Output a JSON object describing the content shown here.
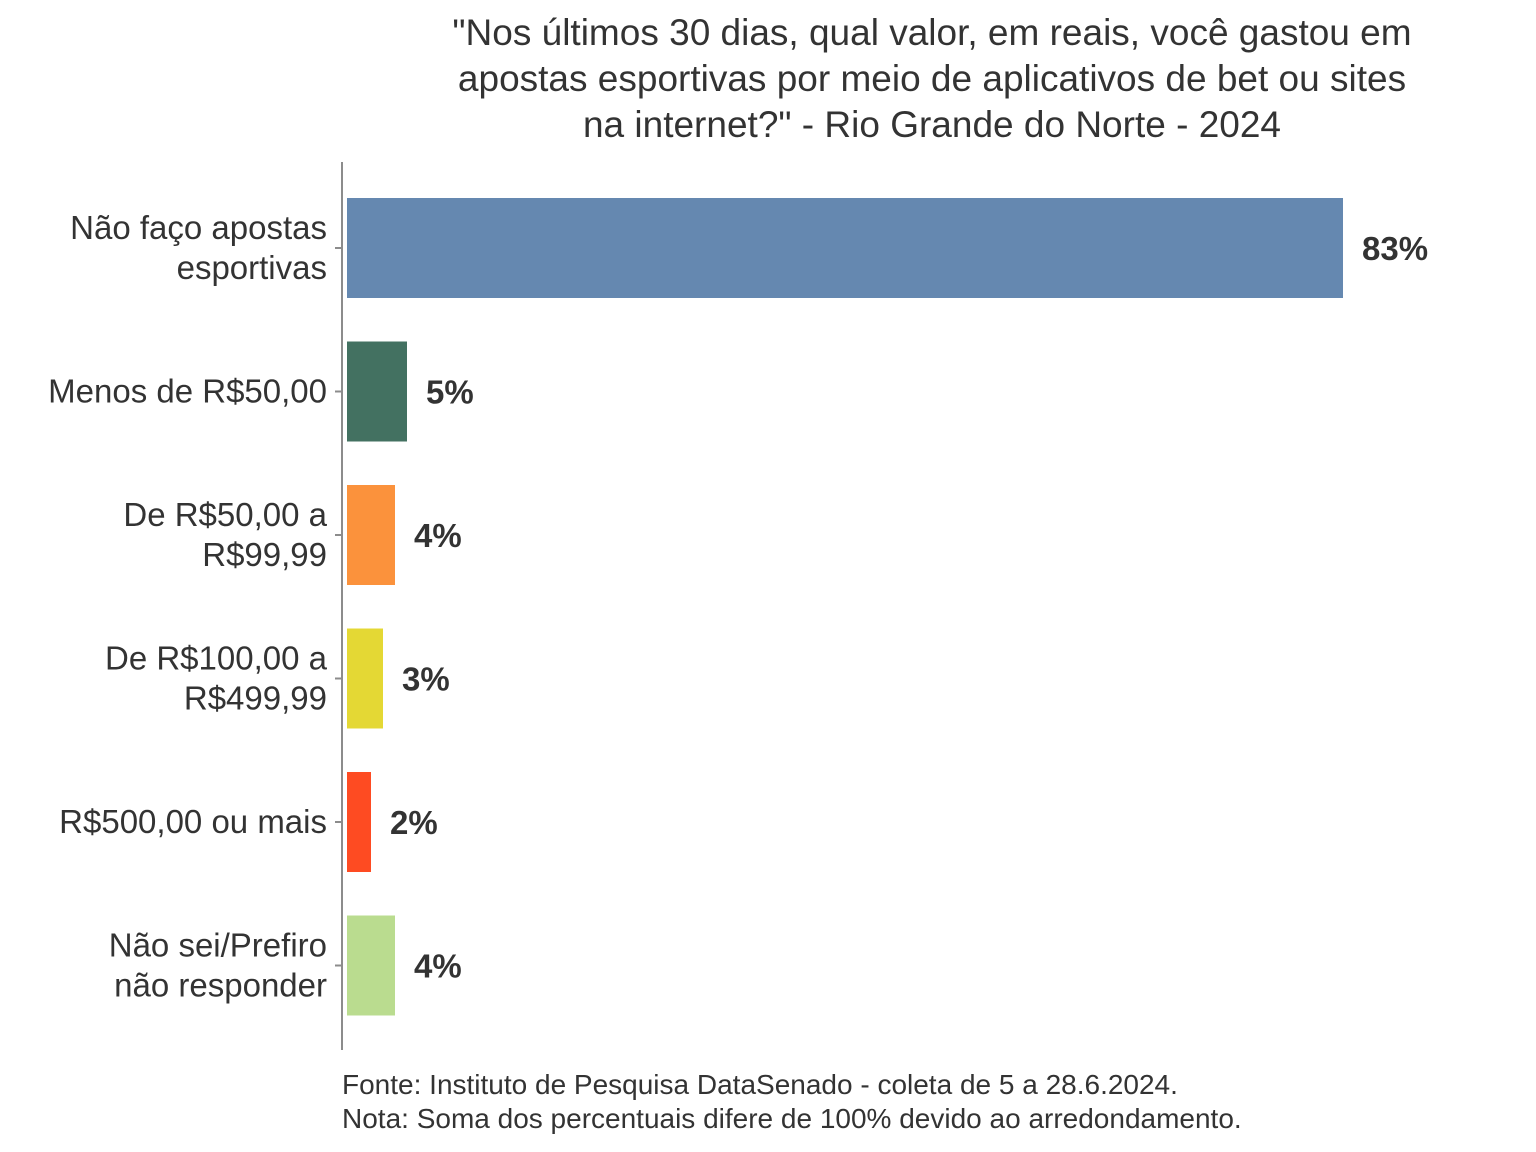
{
  "chart_data": {
    "type": "bar",
    "orientation": "horizontal",
    "title_lines": [
      "\"Nos últimos 30 dias, qual valor, em reais, você gastou em",
      "apostas esportivas por meio de aplicativos de bet ou sites",
      "na internet?\" - Rio Grande do Norte - 2024"
    ],
    "categories": [
      [
        "Não faço apostas",
        "esportivas"
      ],
      [
        "Menos de R$50,00"
      ],
      [
        "De R$50,00 a",
        "R$99,99"
      ],
      [
        "De R$100,00 a",
        "R$499,99"
      ],
      [
        "R$500,00 ou mais"
      ],
      [
        "Não sei/Prefiro",
        "não responder"
      ]
    ],
    "values": [
      83,
      5,
      4,
      3,
      2,
      4
    ],
    "value_labels": [
      "83%",
      "5%",
      "4%",
      "3%",
      "2%",
      "4%"
    ],
    "colors": [
      "#6588b0",
      "#437161",
      "#fb923c",
      "#e4d834",
      "#fe4b22",
      "#badc8f"
    ],
    "xlim": [
      0,
      100
    ],
    "grid": false,
    "legend": "none"
  },
  "footer": {
    "source": "Fonte: Instituto de Pesquisa DataSenado - coleta de 5 a 28.6.2024.",
    "note": "Nota: Soma dos percentuais difere de 100% devido ao arredondamento."
  }
}
